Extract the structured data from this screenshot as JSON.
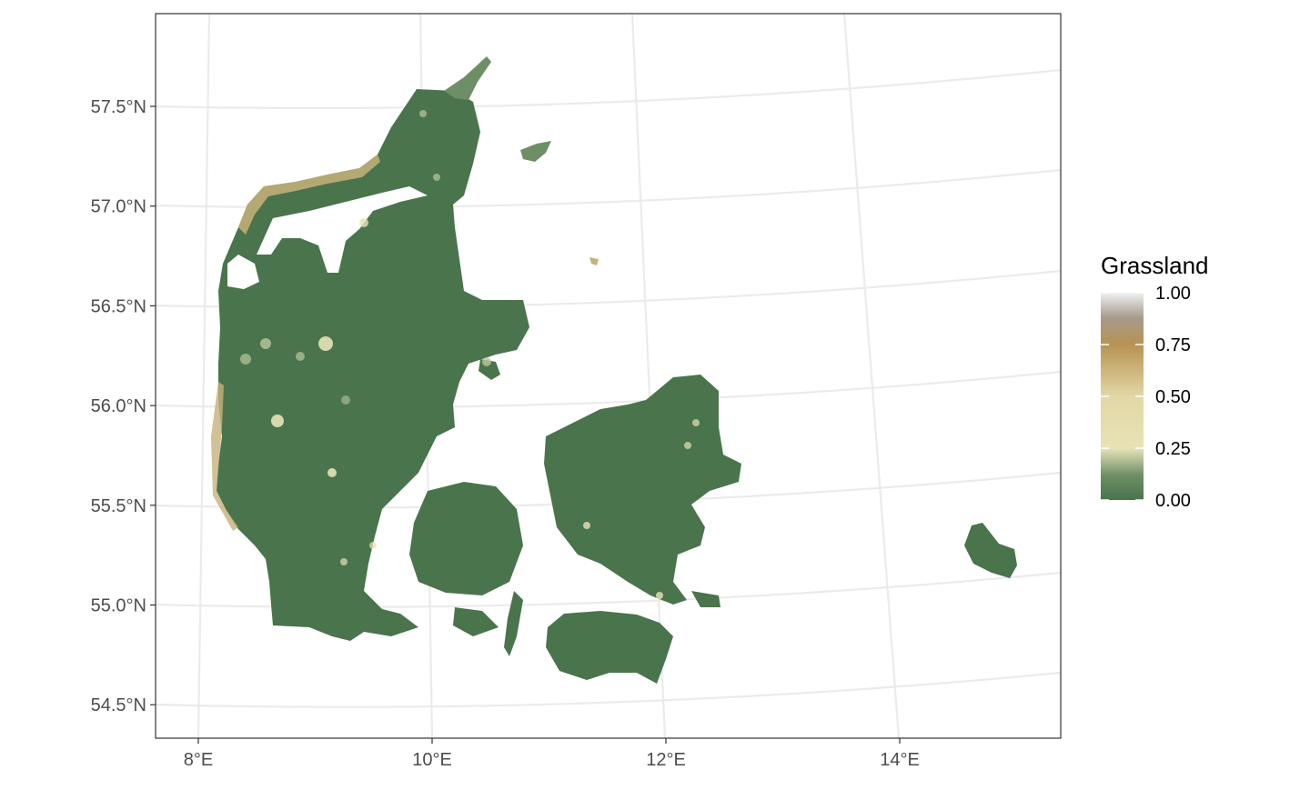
{
  "chart_data": {
    "type": "raster-map",
    "region": "Denmark",
    "legend": {
      "title": "Grassland",
      "ticks": [
        "1.00",
        "0.75",
        "0.50",
        "0.25",
        "0.00"
      ],
      "values": [
        1.0,
        0.75,
        0.5,
        0.25,
        0.0
      ],
      "colors": [
        "#f0f0f0",
        "#b79353",
        "#e7e3b7",
        "#b9c79c",
        "#4a744c"
      ],
      "position": "right"
    },
    "x_ticks": [
      {
        "value": 8,
        "label": "8°E"
      },
      {
        "value": 10,
        "label": "10°E"
      },
      {
        "value": 12,
        "label": "12°E"
      },
      {
        "value": 14,
        "label": "14°E"
      }
    ],
    "y_ticks": [
      {
        "value": 57.5,
        "label": "57.5°N"
      },
      {
        "value": 57.0,
        "label": "57.0°N"
      },
      {
        "value": 56.5,
        "label": "56.5°N"
      },
      {
        "value": 56.0,
        "label": "56.0°N"
      },
      {
        "value": 55.5,
        "label": "55.5°N"
      },
      {
        "value": 55.0,
        "label": "55.0°N"
      },
      {
        "value": 54.5,
        "label": "54.5°N"
      }
    ],
    "grid": true
  }
}
